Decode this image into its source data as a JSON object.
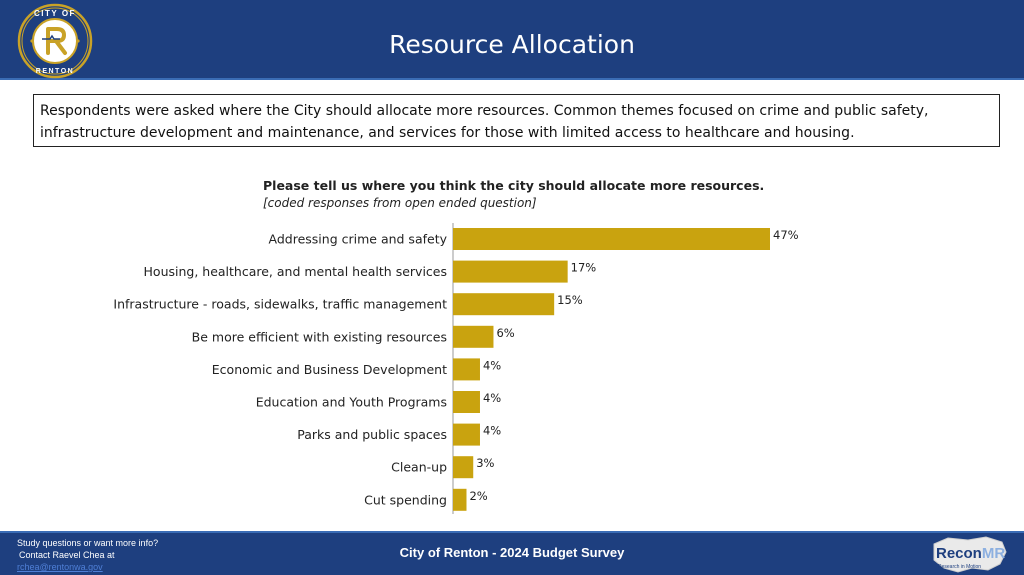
{
  "header": {
    "title": "Resource Allocation",
    "logo": {
      "top_text": "CITY OF",
      "bottom_text": "RENTON",
      "icon": "city-of-renton-seal-icon",
      "colors": {
        "ring": "#c9a227",
        "center": "#1e3f7f"
      }
    }
  },
  "summary": {
    "text": "Respondents were asked where the City should allocate more resources. Common themes focused on crime and public safety, infrastructure development and maintenance, and services for those with limited access to healthcare and housing."
  },
  "chart_data": {
    "type": "bar",
    "orientation": "horizontal",
    "title": "Please tell us where you think the city should allocate more resources.",
    "subtitle": "[coded responses from open ended question]",
    "categories": [
      "Addressing crime and safety",
      "Housing, healthcare, and mental health services",
      "Infrastructure - roads, sidewalks, traffic management",
      "Be more efficient with existing resources",
      "Economic and Business Development",
      "Education and Youth Programs",
      "Parks and public spaces",
      "Clean-up",
      "Cut spending"
    ],
    "values": [
      47,
      17,
      15,
      6,
      4,
      4,
      4,
      3,
      2
    ],
    "value_labels": [
      "47%",
      "17%",
      "15%",
      "6%",
      "4%",
      "4%",
      "4%",
      "3%",
      "2%"
    ],
    "xlim": [
      0,
      47
    ],
    "bar_color": "#c9a30f",
    "grid": false
  },
  "footer": {
    "contact_line1": "Study questions or want more info?",
    "contact_line2": "Contact Raevel Chea at",
    "contact_email": "rchea@rentonwa.gov",
    "survey_title": "City of Renton - 2024 Budget Survey",
    "brand": {
      "name_main": "Recon",
      "name_accent": "MR",
      "tagline": "Research in Motion",
      "icon": "recon-mr-logo-icon"
    }
  }
}
